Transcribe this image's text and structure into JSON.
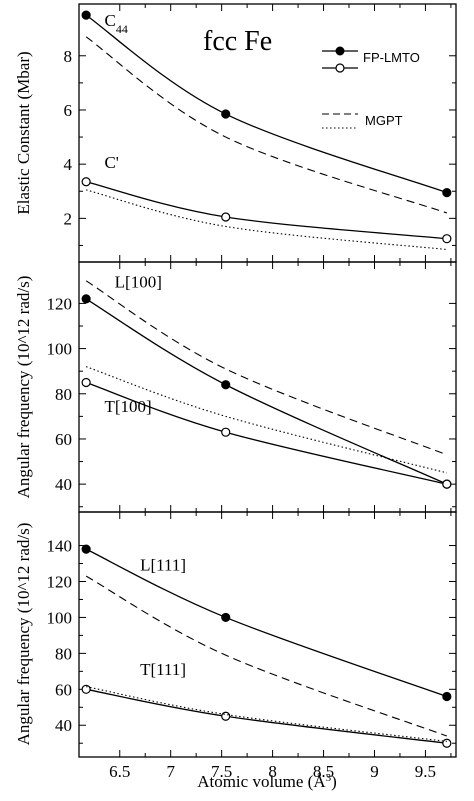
{
  "figure_title": "fcc Fe",
  "legend": {
    "fp_lmto": "FP-LMTO",
    "mgpt": "MGPT"
  },
  "chart_data": [
    {
      "type": "line",
      "ylabel": "Elastic Constant (Mbar)",
      "xlim": [
        6.1,
        9.8
      ],
      "ylim": [
        0.5,
        9.8
      ],
      "yticks": [
        2,
        4,
        6,
        8
      ],
      "annotations": [
        {
          "text": "C44",
          "x": 6.35,
          "y": 9.1
        },
        {
          "text": "C'",
          "x": 6.35,
          "y": 3.85
        }
      ],
      "series": [
        {
          "name": "FP-LMTO",
          "label": "C44",
          "style": "solid",
          "marker": "filled",
          "x": [
            6.17,
            7.54,
            9.71
          ],
          "y": [
            9.5,
            5.85,
            2.95
          ]
        },
        {
          "name": "MGPT",
          "label": "C44",
          "style": "dashed",
          "marker": "none",
          "x": [
            6.17,
            7.54,
            9.71
          ],
          "y": [
            8.7,
            5.0,
            2.2
          ]
        },
        {
          "name": "FP-LMTO",
          "label": "C'",
          "style": "solid",
          "marker": "open",
          "x": [
            6.17,
            7.54,
            9.71
          ],
          "y": [
            3.35,
            2.05,
            1.25
          ]
        },
        {
          "name": "MGPT",
          "label": "C'",
          "style": "dotted",
          "marker": "none",
          "x": [
            6.17,
            7.54,
            9.71
          ],
          "y": [
            3.05,
            1.7,
            0.85
          ]
        }
      ]
    },
    {
      "type": "line",
      "ylabel": "Angular frequency (10^12 rad/s)",
      "xlim": [
        6.1,
        9.8
      ],
      "ylim": [
        29,
        137
      ],
      "yticks": [
        40,
        60,
        80,
        100,
        120
      ],
      "annotations": [
        {
          "text": "L[100]",
          "x": 6.45,
          "y": 127
        },
        {
          "text": "T[100]",
          "x": 6.35,
          "y": 72
        }
      ],
      "series": [
        {
          "name": "FP-LMTO",
          "label": "L[100]",
          "style": "solid",
          "marker": "filled",
          "x": [
            6.17,
            7.54,
            9.71
          ],
          "y": [
            122,
            84,
            40
          ]
        },
        {
          "name": "MGPT",
          "label": "L[100]",
          "style": "dashed",
          "marker": "none",
          "x": [
            6.17,
            7.54,
            9.71
          ],
          "y": [
            130,
            91,
            53
          ]
        },
        {
          "name": "FP-LMTO",
          "label": "T[100]",
          "style": "solid",
          "marker": "open",
          "x": [
            6.17,
            7.54,
            9.71
          ],
          "y": [
            85,
            63,
            40
          ]
        },
        {
          "name": "MGPT",
          "label": "T[100]",
          "style": "dotted",
          "marker": "none",
          "x": [
            6.17,
            7.54,
            9.71
          ],
          "y": [
            92,
            70,
            45
          ]
        }
      ]
    },
    {
      "type": "line",
      "ylabel": "Angular frequency (10^12 rad/s)",
      "xlabel": "Atomic volume (Å^3)",
      "xlim": [
        6.1,
        9.8
      ],
      "ylim": [
        24,
        157
      ],
      "yticks": [
        40,
        60,
        80,
        100,
        120,
        140
      ],
      "xticks": [
        6.5,
        7,
        7.5,
        8,
        8.5,
        9,
        9.5
      ],
      "annotations": [
        {
          "text": "L[111]",
          "x": 6.7,
          "y": 126
        },
        {
          "text": "T[111]",
          "x": 6.7,
          "y": 68
        }
      ],
      "series": [
        {
          "name": "FP-LMTO",
          "label": "L[111]",
          "style": "solid",
          "marker": "filled",
          "x": [
            6.17,
            7.54,
            9.71
          ],
          "y": [
            138,
            100,
            56
          ]
        },
        {
          "name": "MGPT",
          "label": "L[111]",
          "style": "dashed",
          "marker": "none",
          "x": [
            6.17,
            7.54,
            9.71
          ],
          "y": [
            123,
            79,
            34
          ]
        },
        {
          "name": "FP-LMTO",
          "label": "T[111]",
          "style": "solid",
          "marker": "open",
          "x": [
            6.17,
            7.54,
            9.71
          ],
          "y": [
            60,
            45,
            30
          ]
        },
        {
          "name": "MGPT",
          "label": "T[111]",
          "style": "dotted",
          "marker": "none",
          "x": [
            6.17,
            7.54,
            9.71
          ],
          "y": [
            61.5,
            46,
            31
          ]
        }
      ]
    }
  ]
}
